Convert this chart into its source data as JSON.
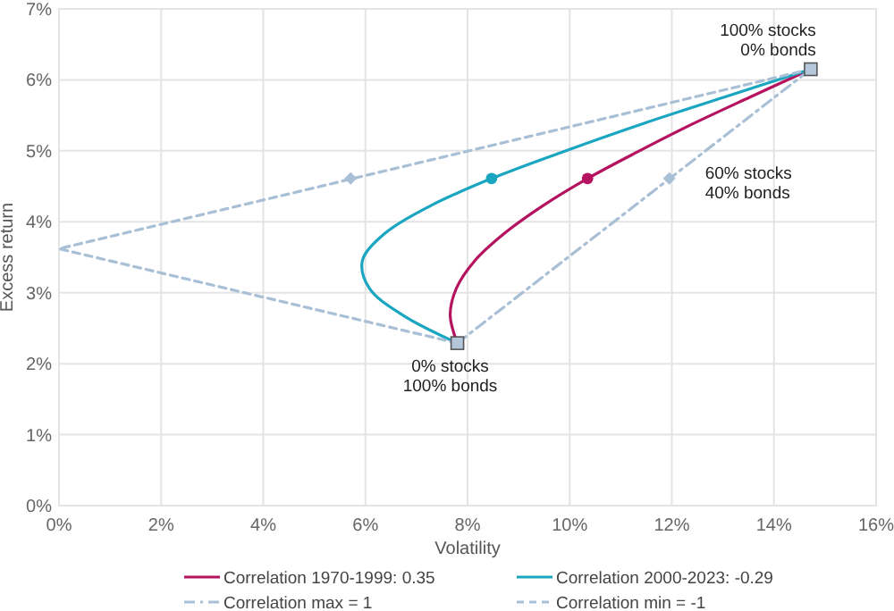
{
  "chart_data": {
    "type": "line",
    "xlabel": "Volatility",
    "ylabel": "Excess return",
    "xlim": [
      0,
      16
    ],
    "ylim": [
      0,
      7
    ],
    "xticks": [
      {
        "value": 0,
        "label": "0%"
      },
      {
        "value": 2,
        "label": "2%"
      },
      {
        "value": 4,
        "label": "4%"
      },
      {
        "value": 6,
        "label": "6%"
      },
      {
        "value": 8,
        "label": "8%"
      },
      {
        "value": 10,
        "label": "10%"
      },
      {
        "value": 12,
        "label": "12%"
      },
      {
        "value": 14,
        "label": "14%"
      },
      {
        "value": 16,
        "label": "16%"
      }
    ],
    "yticks": [
      {
        "value": 0,
        "label": "0%"
      },
      {
        "value": 1,
        "label": "1%"
      },
      {
        "value": 2,
        "label": "2%"
      },
      {
        "value": 3,
        "label": "3%"
      },
      {
        "value": 4,
        "label": "4%"
      },
      {
        "value": 5,
        "label": "5%"
      },
      {
        "value": 6,
        "label": "6%"
      },
      {
        "value": 7,
        "label": "7%"
      }
    ],
    "grid": true,
    "legend": "bottom",
    "marker": "none",
    "series": [
      {
        "name": "Correlation 1970-1999: 0.35",
        "color": "#b5135f",
        "line_style": "solid",
        "x": [
          7.8,
          7.66,
          7.78,
          8.14,
          8.71,
          9.46,
          10.35,
          11.34,
          12.41,
          13.54,
          14.72
        ],
        "values": [
          2.29,
          2.68,
          3.06,
          3.45,
          3.83,
          4.22,
          4.61,
          4.99,
          5.38,
          5.76,
          6.15
        ]
      },
      {
        "name": "Correlation 2000-2023: -0.29",
        "color": "#1aa6c0",
        "line_style": "solid",
        "x": [
          7.8,
          6.74,
          6.08,
          5.94,
          6.37,
          7.26,
          8.47,
          9.88,
          11.42,
          13.04,
          14.72
        ],
        "values": [
          2.29,
          2.68,
          3.06,
          3.45,
          3.83,
          4.22,
          4.61,
          4.99,
          5.38,
          5.76,
          6.15
        ]
      },
      {
        "name": "Correlation max = 1",
        "color": "#a8bfd6",
        "line_style": "dashdot",
        "x": [
          7.8,
          14.72
        ],
        "values": [
          2.29,
          6.15
        ]
      },
      {
        "name": "Correlation min = -1",
        "color": "#a8bfd6",
        "line_style": "dashed",
        "x": [
          7.8,
          0,
          14.72
        ],
        "values": [
          2.29,
          3.62,
          6.15
        ]
      },
      {
        "type": "scatter",
        "marker": "circle",
        "color": "#b5135f",
        "x": [
          10.35
        ],
        "values": [
          4.61
        ]
      },
      {
        "type": "scatter",
        "marker": "circle",
        "color": "#1aa6c0",
        "x": [
          8.47
        ],
        "values": [
          4.61
        ]
      },
      {
        "type": "scatter",
        "marker": "diamond",
        "color": "#a8bfd6",
        "x": [
          11.95,
          5.71
        ],
        "values": [
          4.61,
          4.61
        ]
      },
      {
        "type": "scatter",
        "marker": "square",
        "color": "#b4c6da",
        "x": [
          7.8,
          14.72
        ],
        "values": [
          2.29,
          6.15
        ]
      }
    ],
    "annotations": [
      {
        "text": "100% stocks\n0% bonds",
        "x": 14.72,
        "y": 6.15
      },
      {
        "text": "0% stocks\n100% bonds",
        "x": 7.8,
        "y": 2.29
      },
      {
        "text": "60% stocks\n40% bonds",
        "x": 11.95,
        "y": 4.61
      }
    ]
  }
}
